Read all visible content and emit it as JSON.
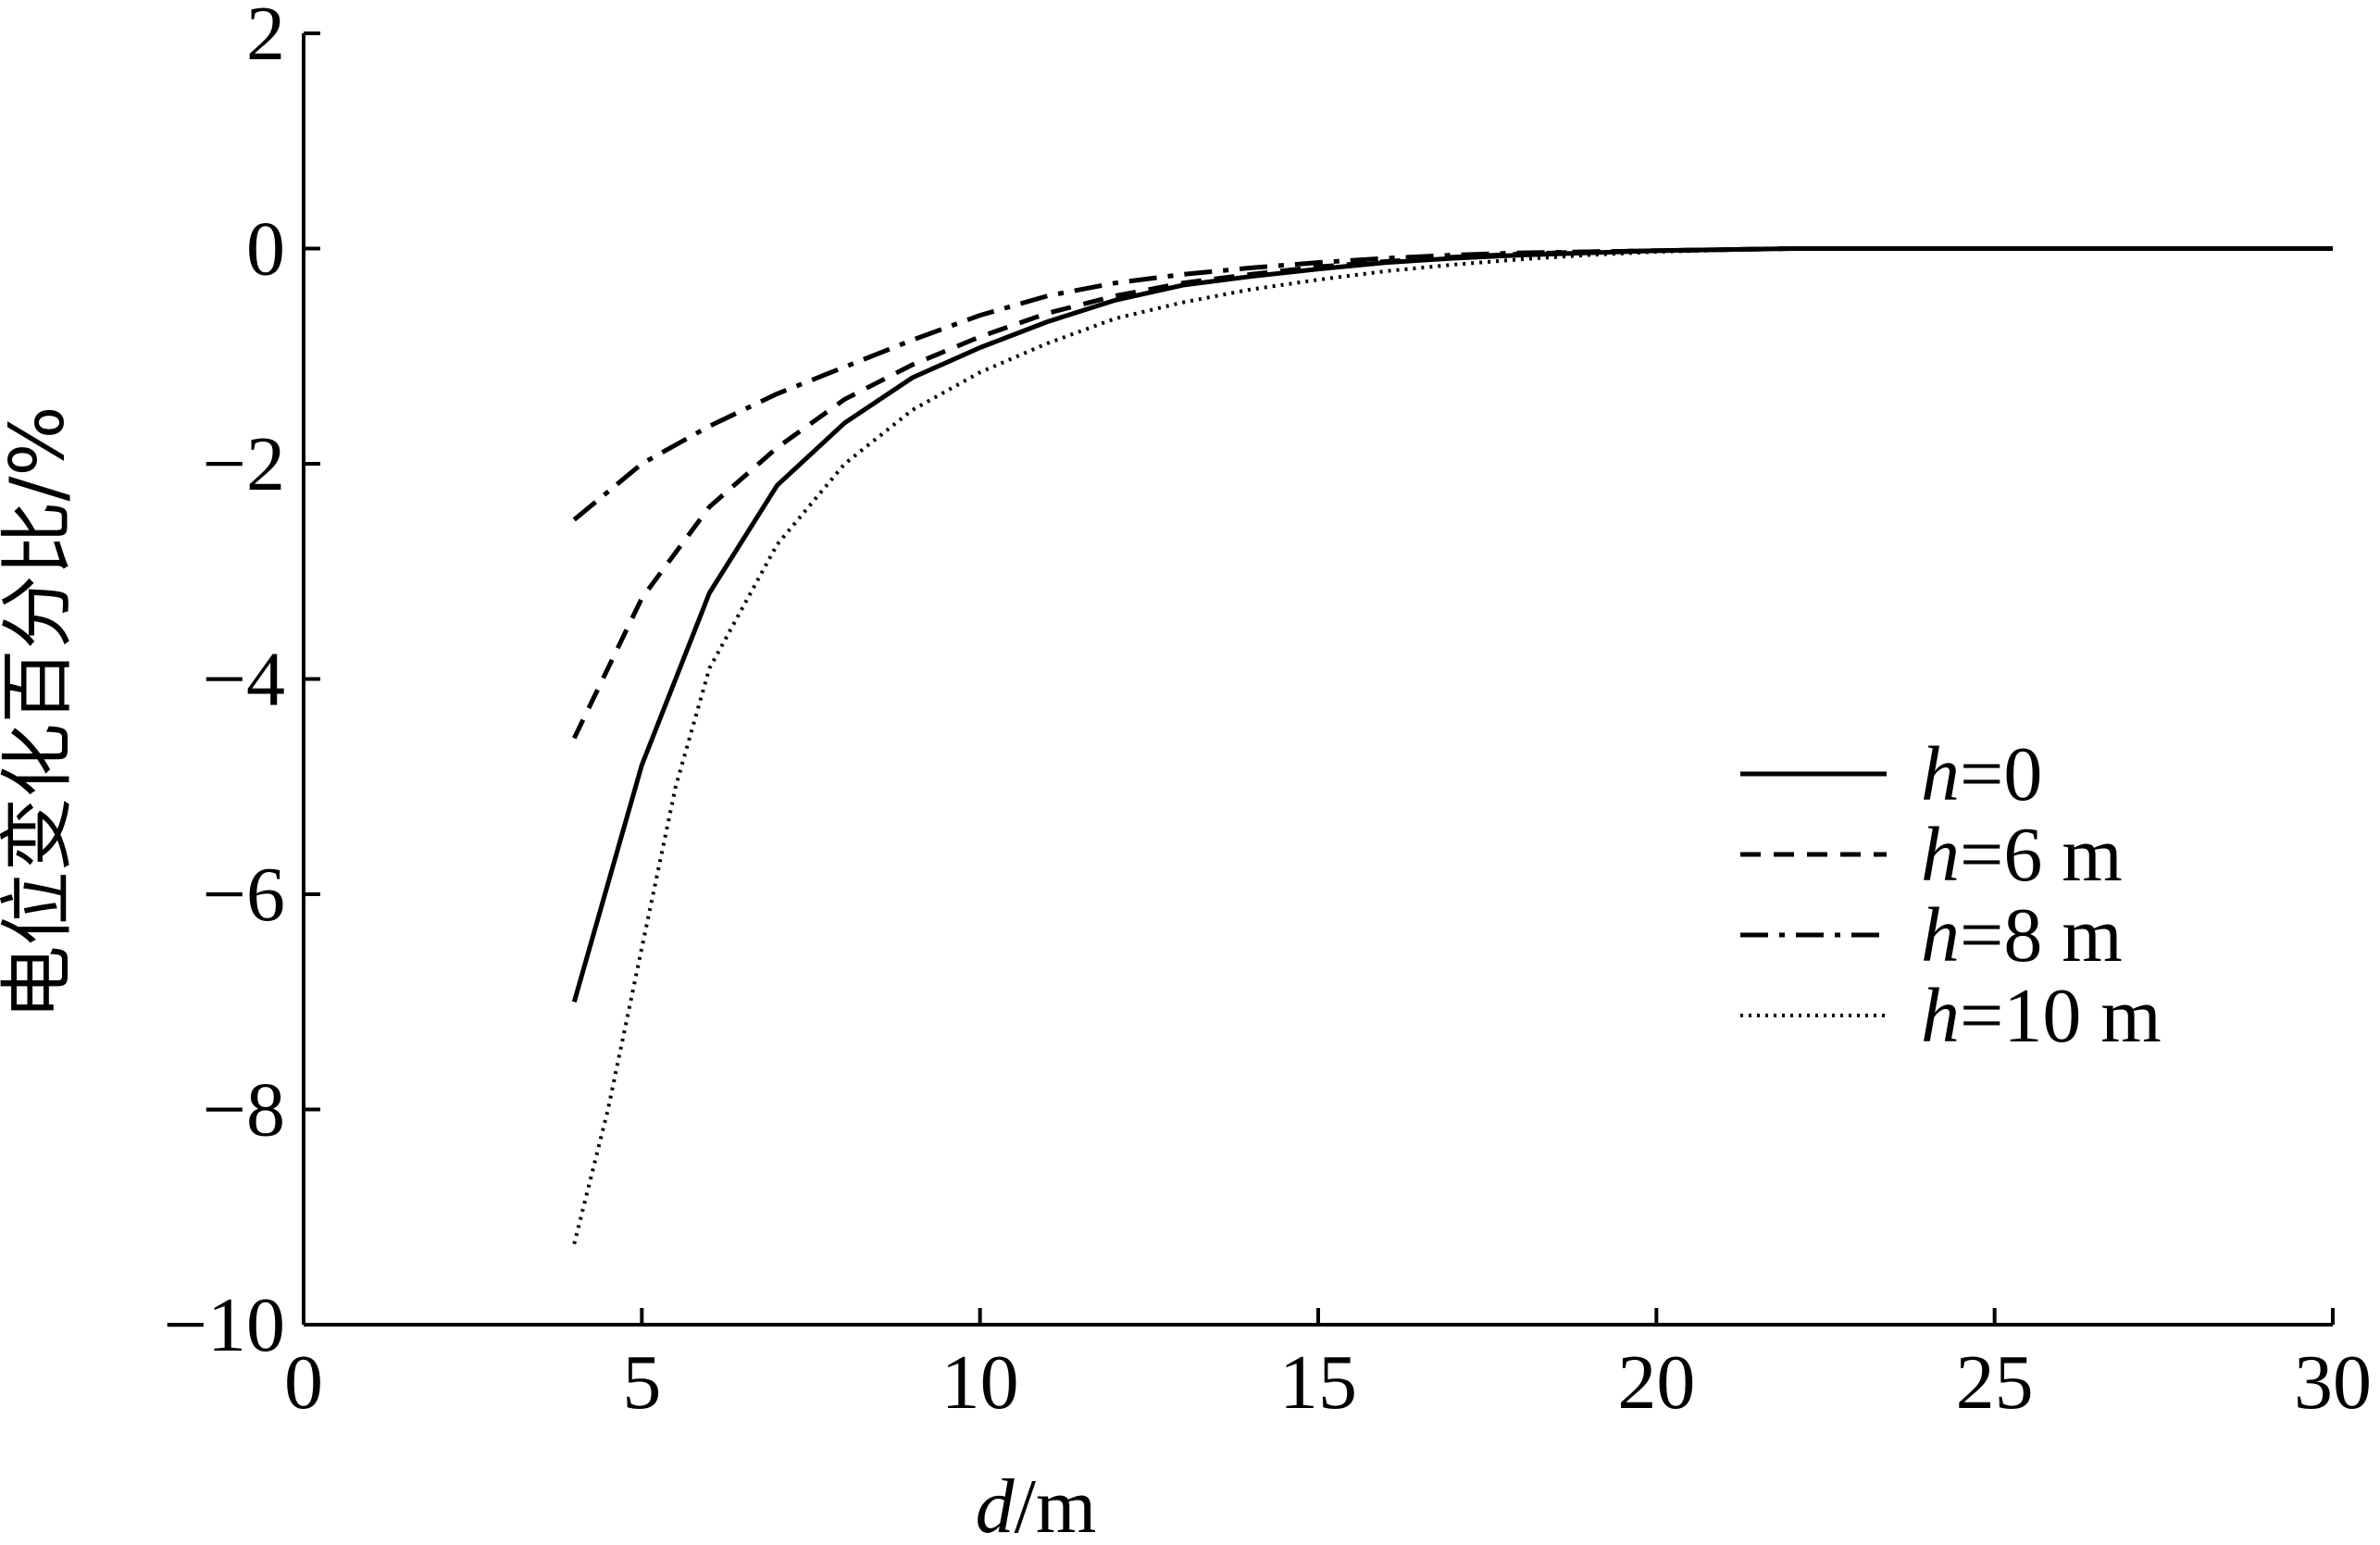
{
  "chart_data": {
    "type": "line",
    "xlabel": {
      "italic": "d",
      "rest": "/m"
    },
    "ylabel": "电位变化百分比/%",
    "xlim": [
      0,
      30
    ],
    "ylim": [
      -10,
      2
    ],
    "xticks": [
      0,
      5,
      10,
      15,
      20,
      25,
      30
    ],
    "yticks": [
      2,
      0,
      -2,
      -4,
      -6,
      -8,
      -10
    ],
    "grid": false,
    "legend_position": "right",
    "series": [
      {
        "name": "h=0",
        "legend": {
          "italic": "h",
          "rest": "=0"
        },
        "dash": "solid",
        "x": [
          4,
          5,
          6,
          7,
          8,
          9,
          10,
          11,
          12,
          13,
          14,
          15,
          16,
          17,
          18,
          19,
          20,
          22,
          24,
          26,
          28,
          30
        ],
        "y": [
          -7.0,
          -4.8,
          -3.2,
          -2.2,
          -1.62,
          -1.2,
          -0.92,
          -0.68,
          -0.48,
          -0.34,
          -0.26,
          -0.19,
          -0.13,
          -0.09,
          -0.06,
          -0.04,
          -0.02,
          0.0,
          0.0,
          0.0,
          0.0,
          0.0
        ]
      },
      {
        "name": "h=6 m",
        "legend": {
          "italic": "h",
          "rest": "=6 m"
        },
        "dash": "dashed",
        "x": [
          4,
          5,
          6,
          7,
          8,
          9,
          10,
          11,
          12,
          13,
          14,
          15,
          16,
          17,
          18,
          19,
          20,
          22,
          24,
          26,
          28,
          30
        ],
        "y": [
          -4.55,
          -3.25,
          -2.4,
          -1.85,
          -1.4,
          -1.08,
          -0.82,
          -0.6,
          -0.44,
          -0.32,
          -0.24,
          -0.17,
          -0.12,
          -0.08,
          -0.05,
          -0.03,
          -0.02,
          0.0,
          0.0,
          0.0,
          0.0,
          0.0
        ]
      },
      {
        "name": "h=8 m",
        "legend": {
          "italic": "h",
          "rest": "=8 m"
        },
        "dash": "dashdot",
        "x": [
          4,
          5,
          6,
          7,
          8,
          9,
          10,
          11,
          12,
          13,
          14,
          15,
          16,
          17,
          18,
          19,
          20,
          22,
          24,
          26,
          28,
          30
        ],
        "y": [
          -2.52,
          -2.0,
          -1.65,
          -1.35,
          -1.1,
          -0.85,
          -0.62,
          -0.44,
          -0.32,
          -0.24,
          -0.18,
          -0.13,
          -0.09,
          -0.06,
          -0.04,
          -0.03,
          -0.02,
          0.0,
          0.0,
          0.0,
          0.0,
          0.0
        ]
      },
      {
        "name": "h=10 m",
        "legend": {
          "italic": "h",
          "rest": "=10 m"
        },
        "dash": "dotted",
        "x": [
          4,
          4.5,
          5,
          5.5,
          6,
          7,
          8,
          9,
          10,
          11,
          12,
          13,
          14,
          15,
          16,
          17,
          18,
          19,
          20,
          22,
          24,
          26,
          28,
          30
        ],
        "y": [
          -9.25,
          -8.0,
          -6.5,
          -5.0,
          -3.9,
          -2.75,
          -2.0,
          -1.5,
          -1.15,
          -0.88,
          -0.65,
          -0.5,
          -0.38,
          -0.29,
          -0.21,
          -0.15,
          -0.1,
          -0.06,
          -0.03,
          0.0,
          0.0,
          0.0,
          0.0,
          0.0
        ]
      }
    ]
  }
}
